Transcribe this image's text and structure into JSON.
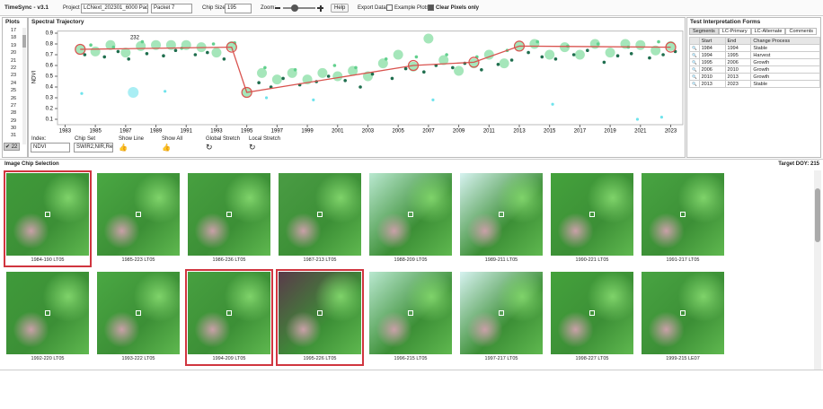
{
  "toolbar": {
    "app_title": "TimeSync - v3.1",
    "project_label": "Project",
    "project": "LCNext_202301_6000 Packet",
    "packet": "Packet 7",
    "chip_size_label": "Chip Size",
    "chip_size": "195",
    "zoom_label": "Zoom:",
    "help": "Help",
    "export": "Export Data",
    "example_plots": "Example Plots",
    "clear_pixels": "Clear Pixels only"
  },
  "plots": {
    "title": "Plots",
    "items": [
      "17",
      "18",
      "19",
      "20",
      "21",
      "22",
      "23",
      "24",
      "25",
      "26",
      "27",
      "28",
      "29",
      "30",
      "31"
    ],
    "current": "22"
  },
  "chart_data": {
    "type": "scatter",
    "title": "Spectral Trajectory",
    "y_label": "NDVI",
    "annotation": "232",
    "annotation_x": 1987.6,
    "annotation_y": 0.86,
    "xlim": [
      1982.5,
      2023.8
    ],
    "ylim": [
      0.05,
      0.92
    ],
    "xticks": [
      1983,
      1985,
      1987,
      1989,
      1991,
      1993,
      1995,
      1997,
      1999,
      2001,
      2003,
      2005,
      2007,
      2009,
      2011,
      2013,
      2015,
      2017,
      2019,
      2021,
      2023
    ],
    "yticks": [
      0.1,
      0.2,
      0.3,
      0.4,
      0.5,
      0.6,
      0.7,
      0.8,
      0.9
    ],
    "colors": {
      "dark": "#1f6e4e",
      "light": "#62d08e",
      "outlier": "#6fe3ec",
      "annual": "#7fdc9c",
      "line": "#d9534f"
    },
    "dark_points": {
      "x": [
        1984.3,
        1985.6,
        1986.5,
        1987.2,
        1988.4,
        1989.5,
        1990.3,
        1991.6,
        1992.4,
        1993.5,
        1995.8,
        1996.6,
        1997.4,
        1998.5,
        1999.6,
        2000.4,
        2001.5,
        2002.5,
        2003.3,
        2004.6,
        2005.5,
        2006.7,
        2007.5,
        2008.6,
        2009.4,
        2010.5,
        2011.6,
        2012.5,
        2013.6,
        2014.5,
        2015.4,
        2016.6,
        2017.5,
        2018.6,
        2019.5,
        2020.4,
        2021.6,
        2022.5,
        2023.3
      ],
      "values": [
        0.7,
        0.68,
        0.73,
        0.66,
        0.71,
        0.69,
        0.74,
        0.7,
        0.72,
        0.66,
        0.44,
        0.4,
        0.48,
        0.42,
        0.45,
        0.5,
        0.46,
        0.4,
        0.52,
        0.48,
        0.57,
        0.54,
        0.6,
        0.58,
        0.62,
        0.56,
        0.61,
        0.65,
        0.72,
        0.68,
        0.66,
        0.7,
        0.74,
        0.63,
        0.69,
        0.71,
        0.67,
        0.7,
        0.73
      ]
    },
    "light_points": {
      "x": [
        1984.7,
        1986.2,
        1988.1,
        1990.7,
        1992.8,
        1994.2,
        1996.2,
        1998.2,
        2000.8,
        2002.2,
        2004.2,
        2006.2,
        2008.2,
        2010.2,
        2012.2,
        2014.2,
        2016.2,
        2018.2,
        2020.2,
        2022.2
      ],
      "values": [
        0.79,
        0.77,
        0.82,
        0.76,
        0.8,
        0.81,
        0.58,
        0.56,
        0.6,
        0.58,
        0.66,
        0.68,
        0.7,
        0.68,
        0.74,
        0.82,
        0.78,
        0.8,
        0.77,
        0.82
      ]
    },
    "outlier_points": {
      "x": [
        1984.1,
        1989.6,
        1996.3,
        1999.4,
        2007.3,
        2015.2,
        2020.8,
        2022.4
      ],
      "values": [
        0.34,
        0.36,
        0.3,
        0.28,
        0.28,
        0.24,
        0.1,
        0.12
      ]
    },
    "annual_points": {
      "x": [
        1984,
        1985,
        1986,
        1987,
        1988,
        1989,
        1990,
        1991,
        1992,
        1993,
        1994,
        1995,
        1996,
        1997,
        1998,
        1999,
        2000,
        2001,
        2002,
        2003,
        2004,
        2005,
        2006,
        2007,
        2008,
        2009,
        2010,
        2011,
        2012,
        2013,
        2014,
        2015,
        2016,
        2017,
        2018,
        2019,
        2020,
        2021,
        2022,
        2023
      ],
      "values": [
        0.75,
        0.73,
        0.79,
        0.72,
        0.78,
        0.79,
        0.79,
        0.79,
        0.77,
        0.72,
        0.78,
        0.35,
        0.53,
        0.47,
        0.53,
        0.47,
        0.53,
        0.5,
        0.55,
        0.5,
        0.62,
        0.7,
        0.59,
        0.85,
        0.65,
        0.55,
        0.62,
        0.7,
        0.62,
        0.78,
        0.8,
        0.7,
        0.77,
        0.7,
        0.8,
        0.72,
        0.8,
        0.79,
        0.74,
        0.78
      ]
    },
    "cloud_point": {
      "x": [
        1987.5
      ],
      "values": [
        0.35
      ]
    },
    "trajectory": {
      "x": [
        1984,
        1994,
        1995,
        2006,
        2010,
        2013,
        2023
      ],
      "values": [
        0.75,
        0.77,
        0.35,
        0.6,
        0.63,
        0.78,
        0.77
      ]
    }
  },
  "controls": {
    "index_label": "Index:",
    "index": "NDVI",
    "chipset_label": "Chip Set",
    "chipset": "SWIR2,NIR,Red",
    "show_line": "Show Line",
    "show_all": "Show All",
    "global_stretch": "Global Stretch",
    "local_stretch": "Local Stretch"
  },
  "forms": {
    "title": "Test Interpretation Forms",
    "tabs": [
      "Segments",
      "LC-Primary",
      "LC-Alternate",
      "Comments"
    ],
    "columns": [
      "Start",
      "End",
      "Change Process"
    ],
    "rows": [
      [
        "1984",
        "1994",
        "Stable"
      ],
      [
        "1994",
        "1995",
        "Harvest"
      ],
      [
        "1995",
        "2006",
        "Growth"
      ],
      [
        "2006",
        "2010",
        "Growth"
      ],
      [
        "2010",
        "2013",
        "Growth"
      ],
      [
        "2013",
        "2023",
        "Stable"
      ]
    ]
  },
  "chips": {
    "title": "Image Chip Selection",
    "target_doy": "Target DOY: 215",
    "items": [
      {
        "label": "1984-190 LT05",
        "selected": true
      },
      {
        "label": "1985-223 LT05",
        "selected": false
      },
      {
        "label": "1986-236 LT05",
        "selected": false
      },
      {
        "label": "1987-213 LT05",
        "selected": false
      },
      {
        "label": "1988-209 LT05",
        "selected": false
      },
      {
        "label": "1989-211 LT05",
        "selected": false
      },
      {
        "label": "1990-221 LT05",
        "selected": false
      },
      {
        "label": "1991-217 LT05",
        "selected": false
      },
      {
        "label": "1992-220 LT05",
        "selected": false
      },
      {
        "label": "1993-222 LT05",
        "selected": false
      },
      {
        "label": "1994-209 LT05",
        "selected": true
      },
      {
        "label": "1995-226 LT05",
        "selected": true
      },
      {
        "label": "1996-215 LT05",
        "selected": false
      },
      {
        "label": "1997-217 LT05",
        "selected": false
      },
      {
        "label": "1998-227 LT05",
        "selected": false
      },
      {
        "label": "1999-215 LE07",
        "selected": false
      }
    ]
  }
}
